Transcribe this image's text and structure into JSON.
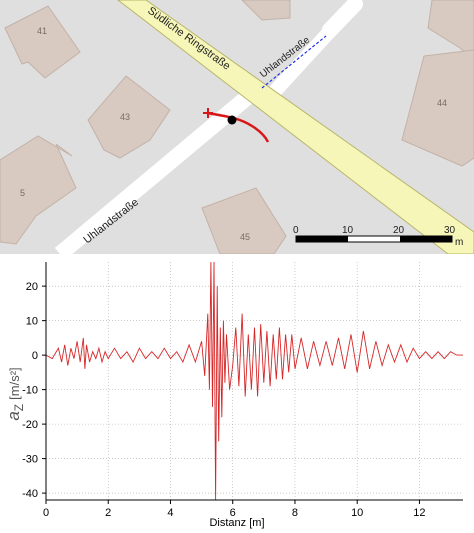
{
  "map": {
    "buildings": [
      {
        "number": "41"
      },
      {
        "number": "43"
      },
      {
        "number": "44"
      },
      {
        "number": "45"
      },
      {
        "number": "5"
      }
    ],
    "streets": [
      {
        "name": "Südliche Ringstraße"
      },
      {
        "name": "Uhlandstraße"
      },
      {
        "name": "Uhlandstraße"
      }
    ],
    "scale_bar": {
      "ticks": [
        "0",
        "10",
        "20",
        "30"
      ],
      "unit": "m"
    },
    "colors": {
      "background": "#e0dfdf",
      "building_fill": "#d8cac1",
      "building_stroke": "#c2b2a8",
      "main_road_fill": "#f5f6b8",
      "main_road_stroke": "#b8b66a",
      "residential_road": "#ffffff",
      "track": "#d81818",
      "path_dashed": "#2233ee"
    }
  },
  "chart_data": {
    "type": "line",
    "xlabel": "Distanz [m]",
    "ylabel": "a",
    "ylabel_sub": "Z",
    "ylabel_unit": "[m/s²]",
    "xlim": [
      0,
      13.4
    ],
    "ylim": [
      -42,
      27
    ],
    "xticks": [
      "0",
      "2",
      "4",
      "6",
      "8",
      "10",
      "12"
    ],
    "yticks": [
      "20",
      "10",
      "0",
      "-10",
      "-20",
      "-30",
      "-40"
    ],
    "grid": true,
    "color": "#d62728",
    "series": [
      {
        "x": [
          0,
          0.2,
          0.4,
          0.5,
          0.6,
          0.7,
          0.8,
          0.9,
          1.0,
          1.1,
          1.2,
          1.25,
          1.3,
          1.4,
          1.5,
          1.6,
          1.7,
          1.8,
          1.9,
          2.0,
          2.2,
          2.4,
          2.6,
          2.8,
          3.0,
          3.2,
          3.4,
          3.6,
          3.8,
          4.0,
          4.2,
          4.4,
          4.6,
          4.8,
          5.0,
          5.1,
          5.2,
          5.25,
          5.3,
          5.35,
          5.4,
          5.45,
          5.5,
          5.55,
          5.6,
          5.65,
          5.7,
          5.75,
          5.8,
          5.9,
          6.0,
          6.1,
          6.2,
          6.3,
          6.4,
          6.5,
          6.6,
          6.7,
          6.8,
          6.9,
          7.0,
          7.1,
          7.2,
          7.3,
          7.4,
          7.5,
          7.6,
          7.7,
          7.8,
          7.9,
          8.0,
          8.2,
          8.4,
          8.6,
          8.8,
          9.0,
          9.2,
          9.4,
          9.6,
          9.8,
          10.0,
          10.2,
          10.4,
          10.6,
          10.8,
          11.0,
          11.2,
          11.4,
          11.6,
          11.8,
          12.0,
          12.2,
          12.4,
          12.6,
          12.8,
          13.0,
          13.2,
          13.4
        ],
        "y": [
          0,
          -1,
          2,
          -2,
          3,
          -3,
          2,
          -1,
          4,
          -2,
          5,
          -4,
          3,
          -2,
          1,
          -1,
          2,
          -2,
          1,
          -1,
          2,
          -1,
          1,
          -2,
          2,
          -1,
          1,
          -1,
          2,
          -1,
          1,
          -2,
          3,
          -2,
          4,
          -6,
          12,
          -10,
          28,
          -15,
          27,
          -42,
          20,
          -25,
          8,
          -18,
          10,
          -8,
          6,
          -10,
          -3,
          8,
          -9,
          12,
          -12,
          6,
          -10,
          8,
          -12,
          9,
          -8,
          7,
          -9,
          6,
          -7,
          8,
          -7,
          6,
          -5,
          6,
          -4,
          5,
          -4,
          4,
          -3,
          4,
          -3,
          5,
          -4,
          6,
          -5,
          7,
          -4,
          4,
          -3,
          3,
          -2,
          3,
          -2,
          2,
          -1,
          1,
          -1,
          1,
          -1,
          1,
          0,
          0
        ]
      }
    ]
  }
}
